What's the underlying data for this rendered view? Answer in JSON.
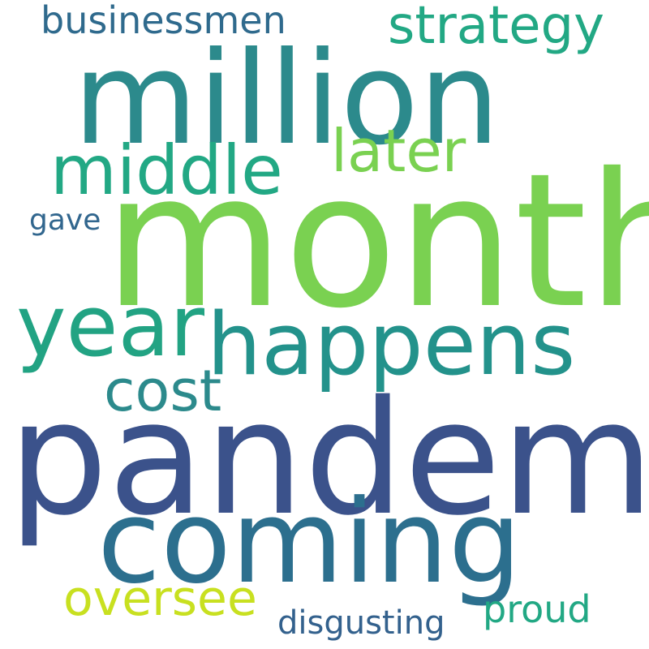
{
  "words": {
    "month": {
      "text": "month",
      "color": "#7ad151"
    },
    "pandemic": {
      "text": "pandemic",
      "color": "#3b528b"
    },
    "million": {
      "text": "million",
      "color": "#2c8a8c"
    },
    "coming": {
      "text": "coming",
      "color": "#2c6f8e"
    },
    "happens": {
      "text": "happens",
      "color": "#23928b"
    },
    "year": {
      "text": "year",
      "color": "#22a383"
    },
    "middle": {
      "text": "middle",
      "color": "#22a884"
    },
    "strategy": {
      "text": "strategy",
      "color": "#22a884"
    },
    "later": {
      "text": "later",
      "color": "#7ad151"
    },
    "cost": {
      "text": "cost",
      "color": "#2c8a8c"
    },
    "oversee": {
      "text": "oversee",
      "color": "#c8e020"
    },
    "businessmen": {
      "text": "businessmen",
      "color": "#2f6a8d"
    },
    "proud": {
      "text": "proud",
      "color": "#22a884"
    },
    "disgusting": {
      "text": "disgusting",
      "color": "#33618d"
    },
    "gave": {
      "text": "gave",
      "color": "#31668e"
    }
  }
}
